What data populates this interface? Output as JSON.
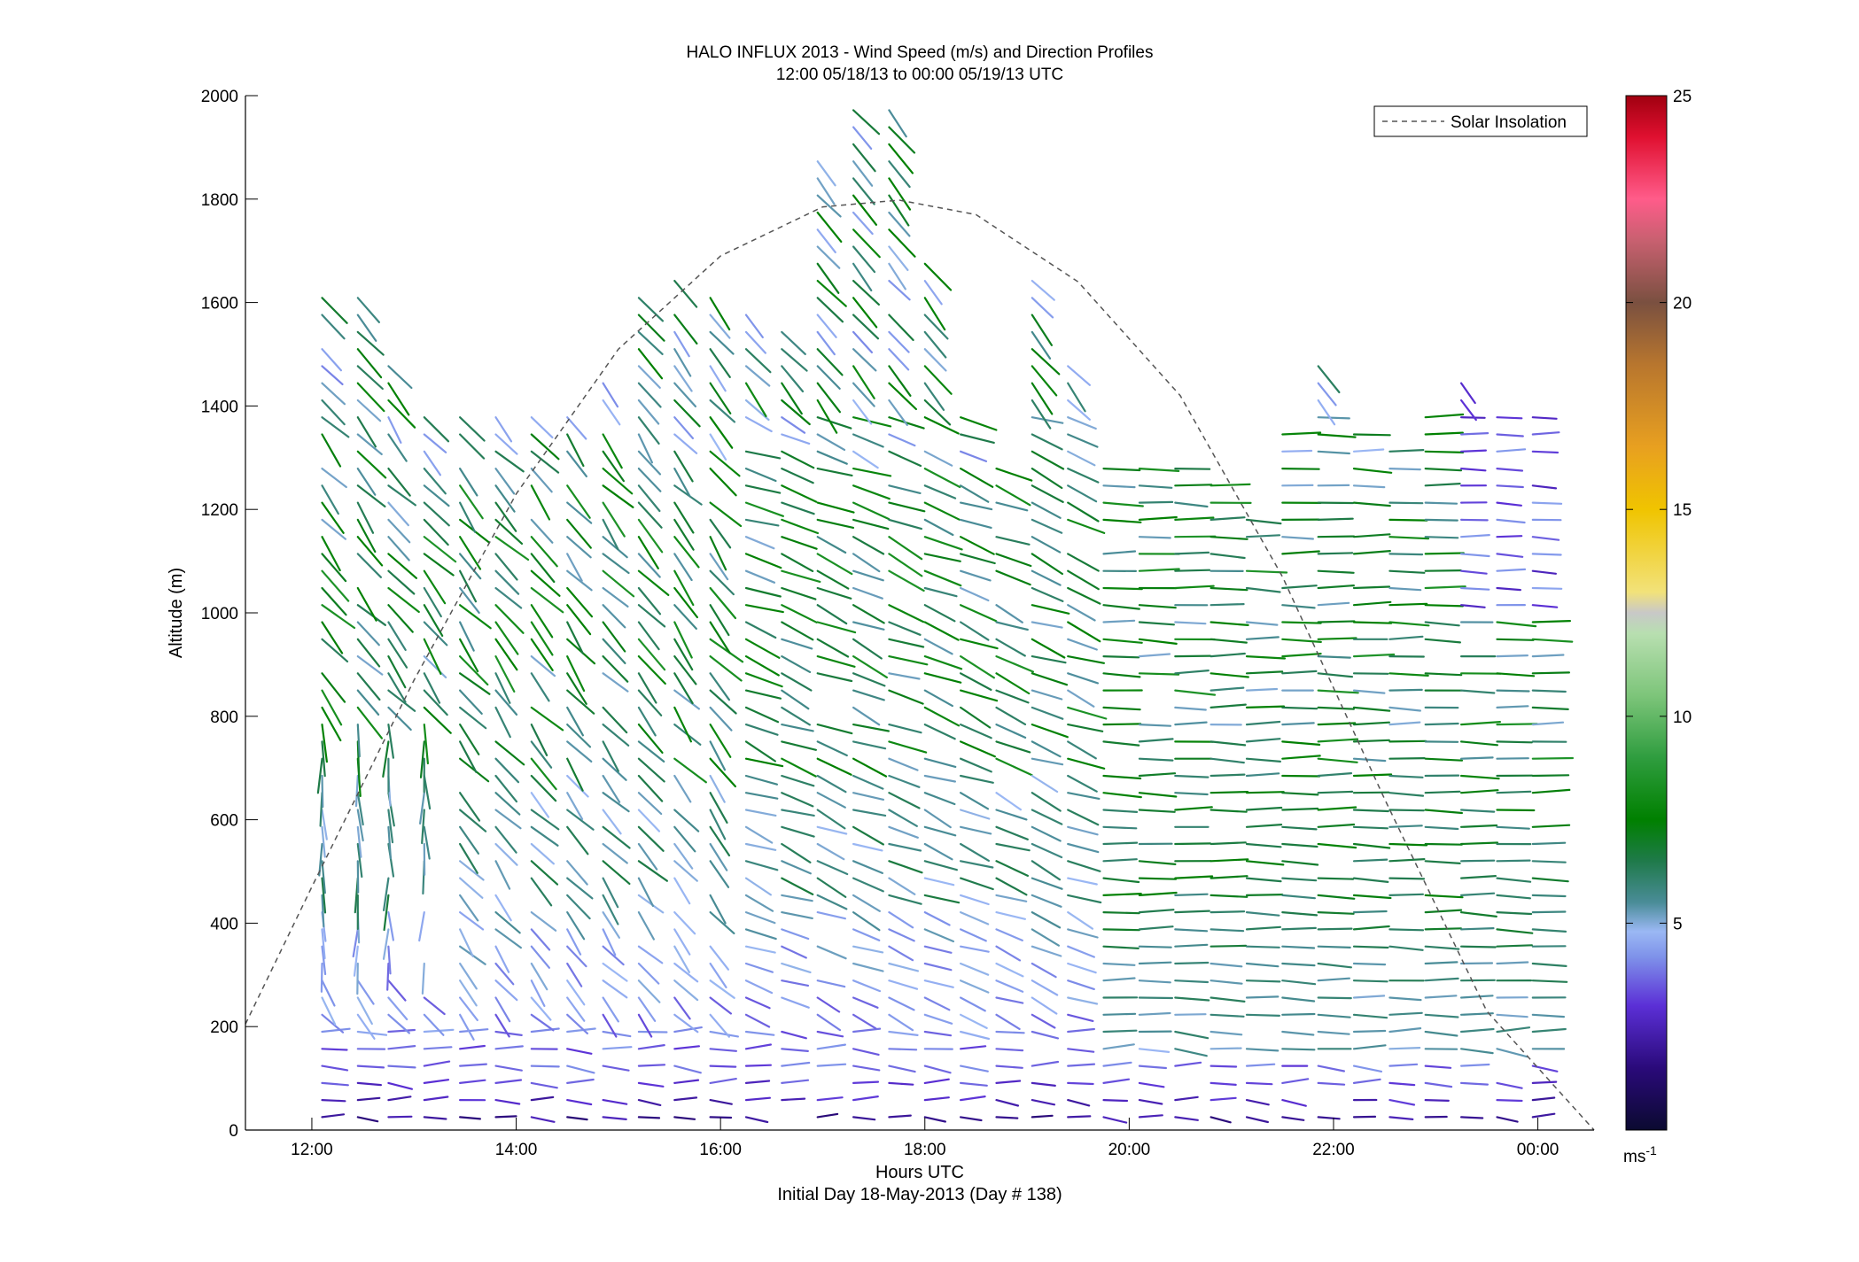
{
  "chart_data": {
    "type": "quiver",
    "title": "HALO INFLUX 2013 - Wind Speed (m/s) and Direction Profiles",
    "subtitle": "12:00 05/18/13 to 00:00 05/19/13  UTC",
    "xlabel": "Hours UTC",
    "xlabel2": "Initial Day 18-May-2013 (Day # 138)",
    "ylabel": "Altitude (m)",
    "xlim": [
      11.35,
      24.55
    ],
    "ylim": [
      0,
      2000
    ],
    "x_ticks": [
      12,
      14,
      16,
      18,
      20,
      22,
      24
    ],
    "x_tick_labels": [
      "12:00",
      "14:00",
      "16:00",
      "18:00",
      "20:00",
      "22:00",
      "00:00"
    ],
    "y_ticks": [
      0,
      200,
      400,
      600,
      800,
      1000,
      1200,
      1400,
      1600,
      1800,
      2000
    ],
    "y_tick_labels": [
      "0",
      "200",
      "400",
      "600",
      "800",
      "1000",
      "1200",
      "1400",
      "1600",
      "1800",
      "2000"
    ],
    "legend": {
      "position": "top-right",
      "entries": [
        "Solar Insolation"
      ]
    },
    "solar_insolation": {
      "x": [
        11.35,
        12.0,
        13.0,
        14.0,
        15.0,
        16.0,
        17.0,
        17.75,
        18.5,
        19.5,
        20.5,
        21.5,
        22.5,
        23.5,
        24.55
      ],
      "y": [
        205,
        470,
        870,
        1230,
        1510,
        1690,
        1785,
        1798,
        1770,
        1640,
        1420,
        1070,
        640,
        230,
        -10
      ]
    },
    "profiles": {
      "times": [
        12.1,
        12.45,
        12.75,
        13.1,
        13.45,
        13.8,
        14.15,
        14.5,
        14.85,
        15.2,
        15.55,
        15.9,
        16.25,
        16.6,
        16.95,
        17.3,
        17.65,
        18.0,
        18.35,
        18.7,
        19.05,
        19.4,
        19.75,
        20.1,
        20.45,
        20.8,
        21.15,
        21.5,
        21.85,
        22.2,
        22.55,
        22.9,
        23.25,
        23.6,
        23.95
      ],
      "top_altitudes": [
        1620,
        1620,
        1480,
        1400,
        1400,
        1400,
        1400,
        1400,
        1500,
        1620,
        1650,
        1620,
        1580,
        1560,
        1900,
        2000,
        2000,
        1700,
        1380,
        1300,
        1650,
        1480,
        1300,
        1300,
        1300,
        1250,
        1200,
        1350,
        1500,
        1350,
        1350,
        1400,
        1450,
        1400,
        1400
      ],
      "levels_spacing_m": 33,
      "lowest_altitude_m": 25
    },
    "colorbar": {
      "min": 0,
      "max": 25,
      "ticks": [
        5,
        10,
        15,
        20,
        25
      ],
      "tick_labels": [
        "5",
        "10",
        "15",
        "20",
        "25"
      ],
      "units_label": "ms",
      "units_sup": "-1",
      "colormap": [
        [
          0,
          "#0b0a30"
        ],
        [
          1.5,
          "#2a0a7a"
        ],
        [
          3,
          "#5b2fd6"
        ],
        [
          4.2,
          "#7f93ea"
        ],
        [
          4.8,
          "#9bb8f4"
        ],
        [
          5.5,
          "#4a8c98"
        ],
        [
          6.5,
          "#1f7a4a"
        ],
        [
          7.5,
          "#008000"
        ],
        [
          9,
          "#2f9d3f"
        ],
        [
          10.5,
          "#7dc57a"
        ],
        [
          12,
          "#b8dfb0"
        ],
        [
          12.5,
          "#c8c8c8"
        ],
        [
          13,
          "#f2e27a"
        ],
        [
          15,
          "#f0c400"
        ],
        [
          16.5,
          "#e8a020"
        ],
        [
          18.5,
          "#b8762e"
        ],
        [
          20,
          "#7a5040"
        ],
        [
          21.5,
          "#c86070"
        ],
        [
          22.5,
          "#ff5c8a"
        ],
        [
          24,
          "#e01030"
        ],
        [
          25,
          "#a00010"
        ]
      ]
    }
  }
}
